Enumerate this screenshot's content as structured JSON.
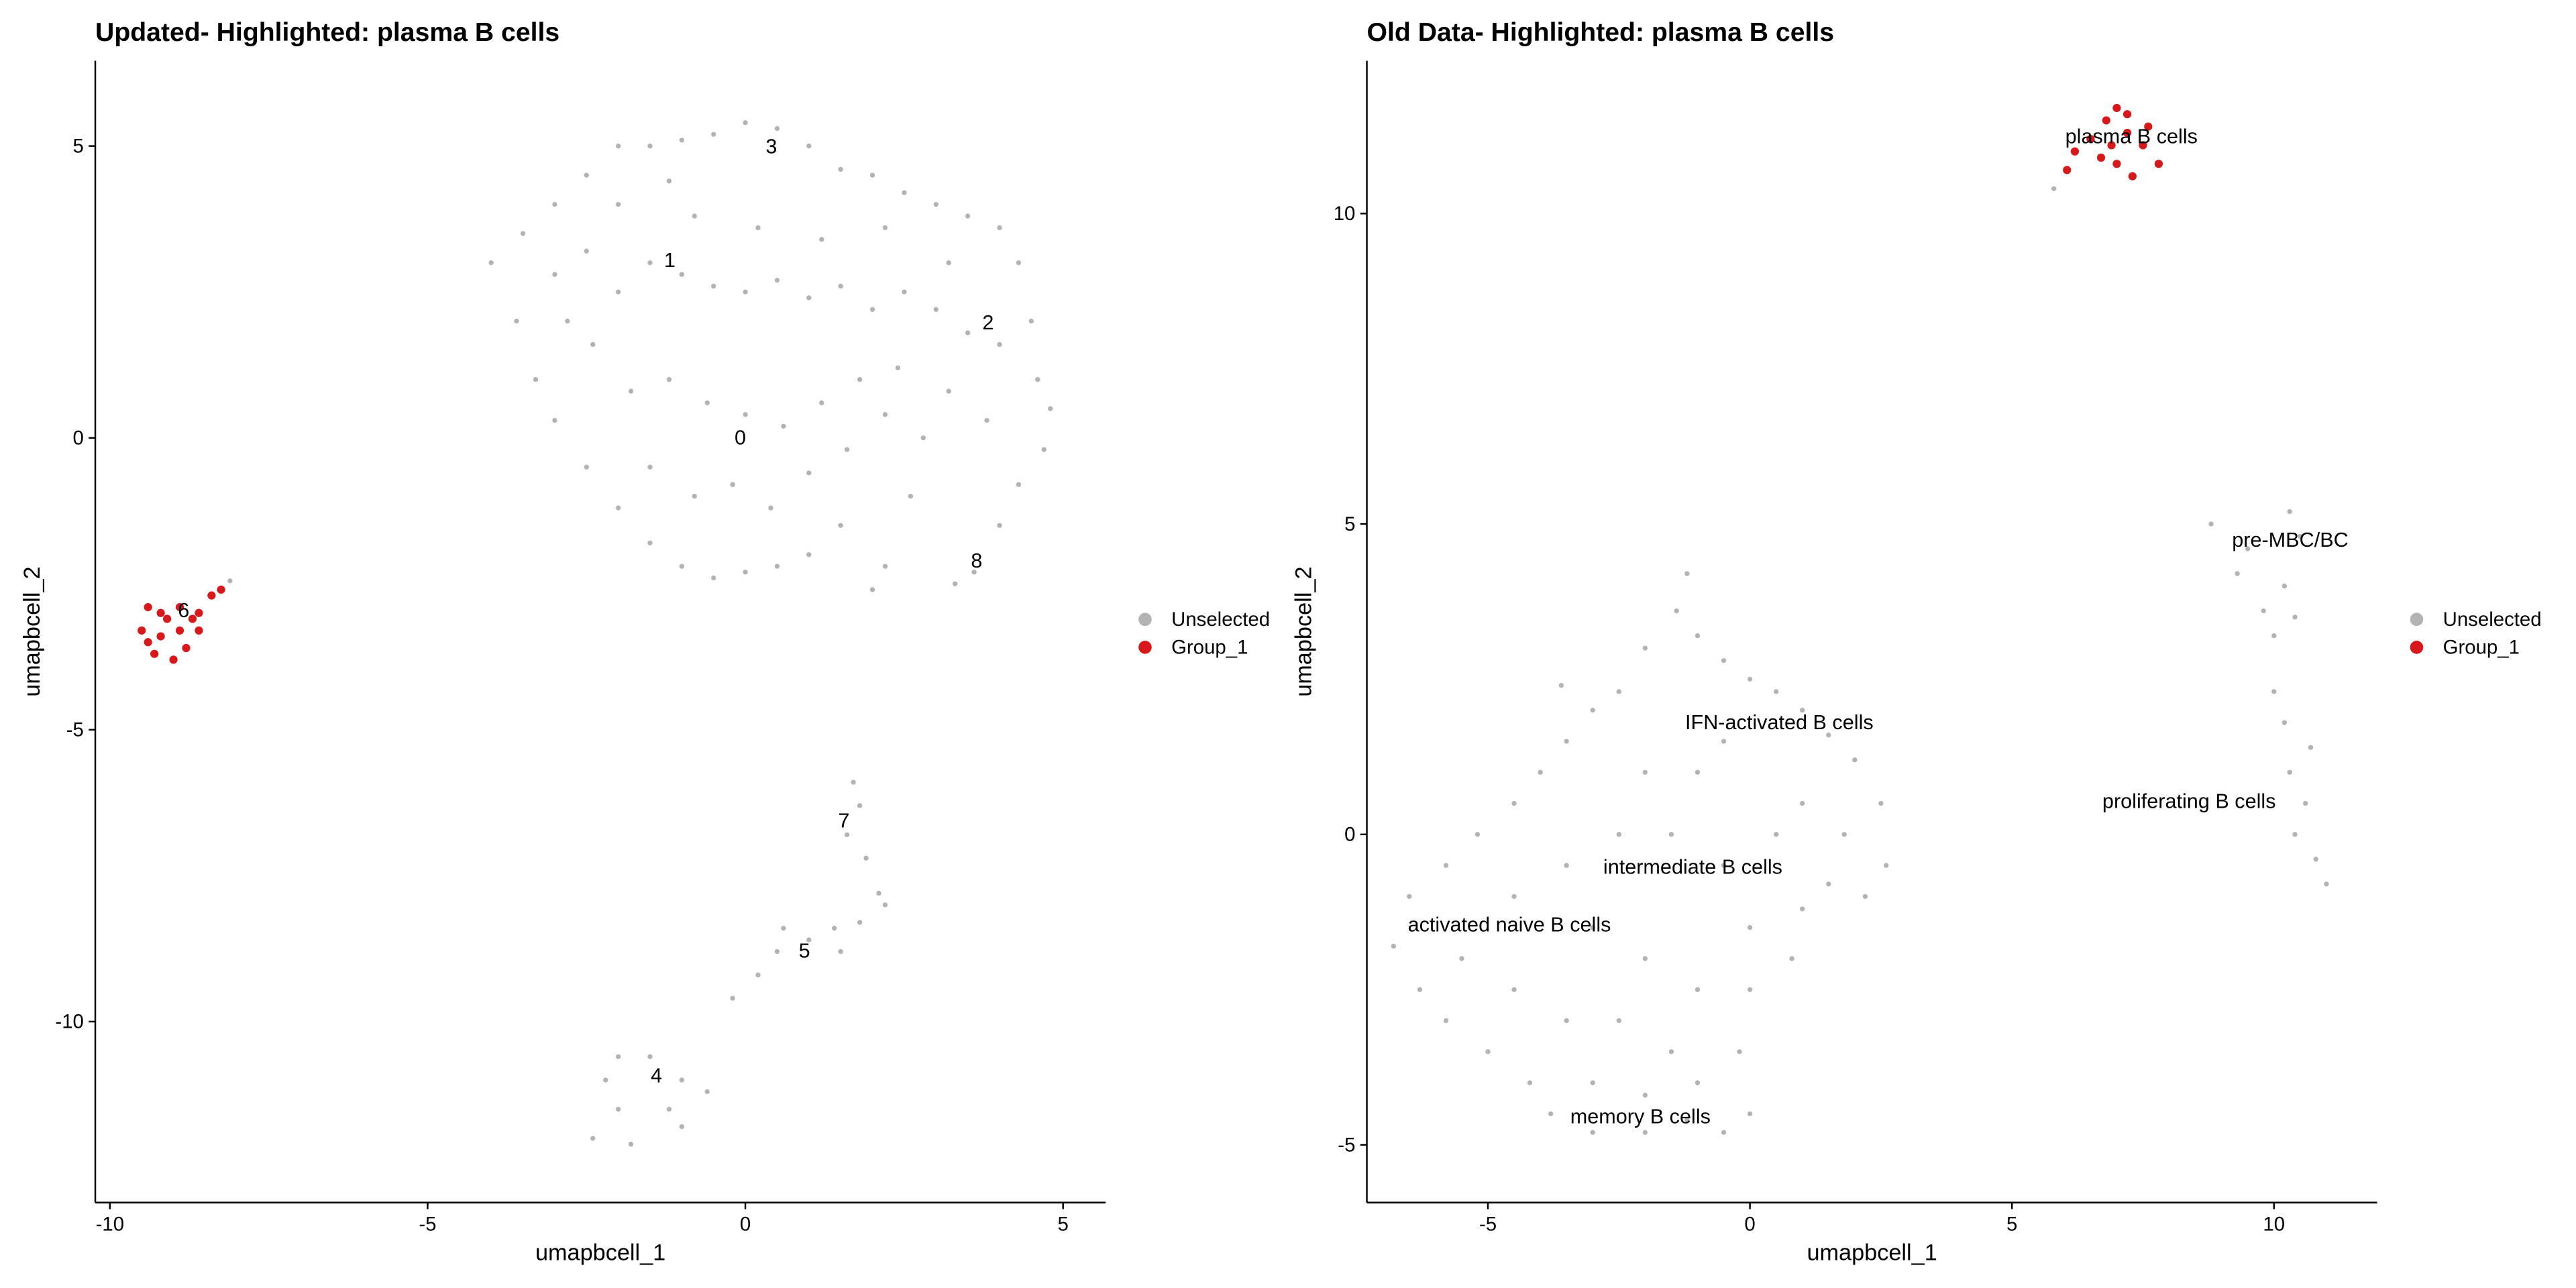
{
  "chart_data": [
    {
      "type": "scatter",
      "title": "Updated- Highlighted: plasma B cells",
      "x_label": "umapbcell_1",
      "y_label": "umapbcell_2",
      "xlim": [
        -10.23,
        5.67
      ],
      "ylim": [
        -13.1,
        6.46
      ],
      "xticks": [
        -10,
        -5,
        0,
        5
      ],
      "yticks": [
        -10,
        -5,
        0,
        5
      ],
      "legend": "right",
      "series": [
        {
          "name": "Unselected",
          "color": "#b3b3b3",
          "x": [
            -4,
            -3.5,
            -3,
            -2.5,
            -2,
            -1.5,
            -1,
            -0.5,
            0,
            0.5,
            1,
            1.5,
            2,
            2.5,
            3,
            3.5,
            4,
            4.3,
            4.5,
            4.6,
            4.8,
            4.7,
            4.3,
            4,
            3.6,
            3.3,
            2.6,
            2.2,
            2,
            1.5,
            1,
            0.5,
            0,
            -0.5,
            -1,
            -1.5,
            -2,
            -2.5,
            -3,
            -3.3,
            -3.6,
            -3,
            -2.5,
            -2,
            -1.5,
            -1,
            -0.5,
            0,
            0.5,
            1,
            1.5,
            2,
            2.5,
            3,
            3.5,
            4,
            3.8,
            3.2,
            2.8,
            2.4,
            1.8,
            1.2,
            0.6,
            0,
            -0.6,
            -1.2,
            -1.8,
            -2.4,
            -2.8,
            -1.5,
            -0.8,
            -0.2,
            0.4,
            1,
            1.6,
            2.2,
            -0.8,
            0.2,
            1.2,
            2.2,
            3.2,
            -2,
            -1.2,
            1.7,
            1.8,
            1.6,
            1.9,
            2.1,
            2.2,
            1.8,
            1.4,
            1,
            0.5,
            0.2,
            -0.2,
            0.6,
            1.5,
            -2,
            -1.5,
            -1,
            -0.6,
            -1.2,
            -2,
            -2.4,
            -1.8,
            -1,
            -2.2,
            -8.11
          ],
          "y": [
            3,
            3.5,
            4,
            4.5,
            5,
            5,
            5.1,
            5.2,
            5.4,
            5.3,
            5,
            4.6,
            4.5,
            4.2,
            4,
            3.8,
            3.6,
            3,
            2,
            1,
            0.5,
            -0.2,
            -0.8,
            -1.5,
            -2.3,
            -2.5,
            -1,
            -2.2,
            -2.6,
            -1.5,
            -2,
            -2.2,
            -2.3,
            -2.4,
            -2.2,
            -1.8,
            -1.2,
            -0.5,
            0.3,
            1,
            2,
            2.8,
            3.2,
            2.5,
            3,
            2.8,
            2.6,
            2.5,
            2.7,
            2.4,
            2.6,
            2.2,
            2.5,
            2.2,
            1.8,
            1.6,
            0.3,
            0.8,
            0,
            1.2,
            1,
            0.6,
            0.2,
            0.4,
            0.6,
            1,
            0.8,
            1.6,
            2,
            -0.5,
            -1,
            -0.8,
            -1.2,
            -0.6,
            -0.2,
            0.4,
            3.8,
            3.6,
            3.4,
            3.6,
            3,
            4,
            4.4,
            -5.9,
            -6.3,
            -6.8,
            -7.2,
            -7.8,
            -8,
            -8.3,
            -8.4,
            -8.6,
            -8.8,
            -9.2,
            -9.6,
            -8.4,
            -8.8,
            -10.6,
            -10.6,
            -11,
            -11.2,
            -11.5,
            -11.5,
            -12,
            -12.1,
            -11.8,
            -11,
            -2.45
          ]
        },
        {
          "name": "Group_1",
          "color": "#d7191c",
          "x": [
            -9.4,
            -9.2,
            -8.9,
            -8.6,
            -8.4,
            -8.25,
            -9.5,
            -9.2,
            -8.9,
            -8.6,
            -9.3,
            -9,
            -8.8,
            -9.4,
            -8.7,
            -9.1
          ],
          "y": [
            -2.9,
            -3,
            -2.9,
            -3,
            -2.7,
            -2.6,
            -3.3,
            -3.4,
            -3.3,
            -3.3,
            -3.7,
            -3.8,
            -3.6,
            -3.5,
            -3.1,
            -3.1
          ]
        }
      ],
      "annotations": [
        {
          "text": "3",
          "x": 0.41,
          "y": 4.99
        },
        {
          "text": "1",
          "x": -1.19,
          "y": 3.04
        },
        {
          "text": "2",
          "x": 3.82,
          "y": 1.97
        },
        {
          "text": "0",
          "x": -0.08,
          "y": 0
        },
        {
          "text": "8",
          "x": 3.64,
          "y": -2.11
        },
        {
          "text": "6",
          "x": -8.84,
          "y": -2.96
        },
        {
          "text": "7",
          "x": 1.55,
          "y": -6.56
        },
        {
          "text": "5",
          "x": 0.93,
          "y": -8.79
        },
        {
          "text": "4",
          "x": -1.4,
          "y": -10.93
        }
      ]
    },
    {
      "type": "scatter",
      "title": "Old Data- Highlighted: plasma B cells",
      "x_label": "umapbcell_1",
      "y_label": "umapbcell_2",
      "xlim": [
        -7.31,
        11.97
      ],
      "ylim": [
        -5.93,
        12.46
      ],
      "xticks": [
        -5,
        0,
        5,
        10
      ],
      "yticks": [
        -5,
        0,
        5,
        10
      ],
      "legend": "right",
      "series": [
        {
          "name": "Unselected",
          "color": "#b3b3b3",
          "x": [
            -1.2,
            -1.4,
            -1,
            -2,
            -0.5,
            0,
            0.5,
            1,
            1.5,
            2,
            2.5,
            2.6,
            2.2,
            1.5,
            1,
            0,
            0,
            -0.2,
            0,
            -0.5,
            -1.2,
            -2,
            -3,
            -3.8,
            -4.2,
            -5,
            -5.8,
            -6.3,
            -6.8,
            -6.5,
            -5.8,
            -5.2,
            -4.5,
            -4,
            -3.5,
            -3,
            -2.5,
            -3.6,
            -2,
            -1,
            -1.5,
            -2.5,
            -3.5,
            -4.5,
            -3,
            -2,
            -1,
            -1.5,
            -2.5,
            -3.5,
            -4.5,
            -5.5,
            -0.5,
            0.5,
            1,
            1.8,
            -0.5,
            0.8,
            -3,
            -1,
            -2,
            8.8,
            9.5,
            10.3,
            10.5,
            10.2,
            9.8,
            10,
            10.4,
            9.3,
            10,
            10.2,
            10.3,
            10.6,
            10.4,
            10.8,
            11,
            10.7,
            5.8
          ],
          "y": [
            4.2,
            3.6,
            3.2,
            3,
            2.8,
            2.5,
            2.3,
            2,
            1.6,
            1.2,
            0.5,
            -0.5,
            -1,
            -0.8,
            -1.2,
            -1.5,
            -2.5,
            -3.5,
            -4.5,
            -4.8,
            -4.6,
            -4.8,
            -4.8,
            -4.5,
            -4,
            -3.5,
            -3,
            -2.5,
            -1.8,
            -1,
            -0.5,
            0,
            0.5,
            1,
            1.5,
            2,
            2.3,
            2.4,
            1,
            1,
            0,
            0,
            -0.5,
            -1,
            -1.5,
            -2,
            -2.5,
            -3.5,
            -3,
            -3,
            -2.5,
            -2,
            -0.5,
            0,
            0.5,
            0,
            1.5,
            -2,
            -4,
            -4,
            -4.2,
            5,
            4.6,
            5.2,
            4.8,
            4,
            3.6,
            3.2,
            3.5,
            4.2,
            2.3,
            1.8,
            1,
            0.5,
            0,
            -0.4,
            -0.8,
            1.4,
            10.4
          ]
        },
        {
          "name": "Group_1",
          "color": "#d7191c",
          "x": [
            6.2,
            6.5,
            6.8,
            7,
            7.2,
            7.5,
            7.8,
            7,
            6.7,
            7.3,
            7.6,
            6.9,
            6.05,
            7.2
          ],
          "y": [
            11,
            11.2,
            11.5,
            11.7,
            11.3,
            11.1,
            10.8,
            10.8,
            10.9,
            10.6,
            11.4,
            11.1,
            10.7,
            11.6
          ]
        }
      ],
      "annotations": [
        {
          "text": "plasma B cells",
          "x": 7.28,
          "y": 11.24
        },
        {
          "text": "pre-MBC/BC",
          "x": 10.31,
          "y": 4.74
        },
        {
          "text": "IFN-activated B cells",
          "x": 0.56,
          "y": 1.8
        },
        {
          "text": "proliferating B cells",
          "x": 8.38,
          "y": 0.53
        },
        {
          "text": "intermediate B cells",
          "x": -1.09,
          "y": -0.53
        },
        {
          "text": "activated naive B cells",
          "x": -4.59,
          "y": -1.46
        },
        {
          "text": "memory B cells",
          "x": -2.09,
          "y": -4.55
        }
      ]
    }
  ]
}
